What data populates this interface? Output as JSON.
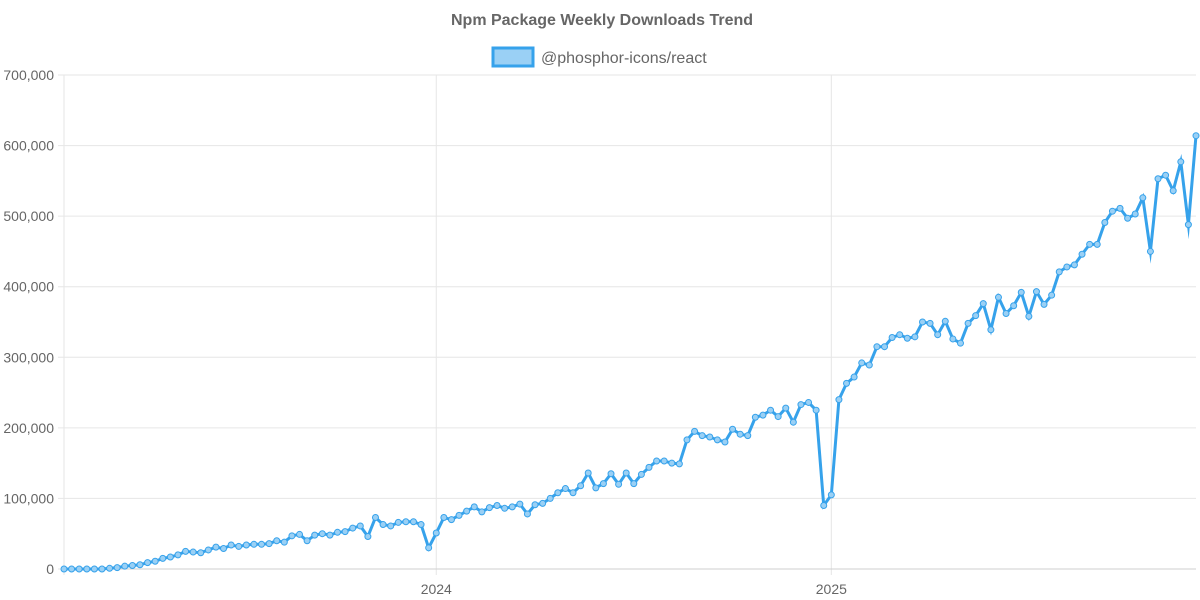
{
  "chart_data": {
    "type": "line",
    "title": "Npm Package Weekly Downloads Trend",
    "xlabel": "",
    "ylabel": "",
    "ylim": [
      0,
      700000
    ],
    "yticks": [
      0,
      100000,
      200000,
      300000,
      400000,
      500000,
      600000,
      700000
    ],
    "ytick_labels": [
      "0",
      "100,000",
      "200,000",
      "300,000",
      "400,000",
      "500,000",
      "600,000",
      "700,000"
    ],
    "xticks": [
      {
        "label": "2024",
        "index": 49
      },
      {
        "label": "2025",
        "index": 101
      }
    ],
    "grid": true,
    "legend_position": "top-center",
    "series": [
      {
        "name": "@phosphor-icons/react",
        "color": "#36A2EB",
        "fill": "#9AD0F5",
        "values": [
          0,
          0,
          0,
          0,
          0,
          0,
          1000,
          2000,
          4000,
          5000,
          6000,
          9000,
          11000,
          15000,
          17000,
          20000,
          25000,
          24000,
          23000,
          27000,
          31000,
          29000,
          34000,
          32000,
          34000,
          35000,
          35000,
          36000,
          40000,
          38000,
          47000,
          49000,
          40000,
          48000,
          50000,
          48000,
          52000,
          53000,
          58000,
          61000,
          46000,
          73000,
          63000,
          61000,
          66000,
          67000,
          67000,
          63000,
          30000,
          51000,
          73000,
          70000,
          76000,
          82000,
          88000,
          81000,
          87000,
          90000,
          86000,
          88000,
          92000,
          78000,
          91000,
          93000,
          100000,
          108000,
          114000,
          108000,
          118000,
          136000,
          115000,
          121000,
          135000,
          120000,
          136000,
          121000,
          134000,
          144000,
          153000,
          153000,
          150000,
          149000,
          183000,
          195000,
          189000,
          187000,
          183000,
          180000,
          198000,
          191000,
          189000,
          215000,
          218000,
          225000,
          216000,
          228000,
          208000,
          233000,
          236000,
          225000,
          90000,
          105000,
          240000,
          263000,
          272000,
          292000,
          289000,
          315000,
          315000,
          328000,
          332000,
          327000,
          329000,
          350000,
          348000,
          332000,
          351000,
          326000,
          320000,
          348000,
          359000,
          376000,
          339000,
          385000,
          362000,
          373000,
          392000,
          358000,
          393000,
          375000,
          388000,
          421000,
          428000,
          431000,
          446000,
          460000,
          460000,
          491000,
          507000,
          511000,
          497000,
          503000,
          526000,
          450000,
          553000,
          558000,
          536000,
          577000,
          488000,
          614000
        ]
      }
    ]
  }
}
